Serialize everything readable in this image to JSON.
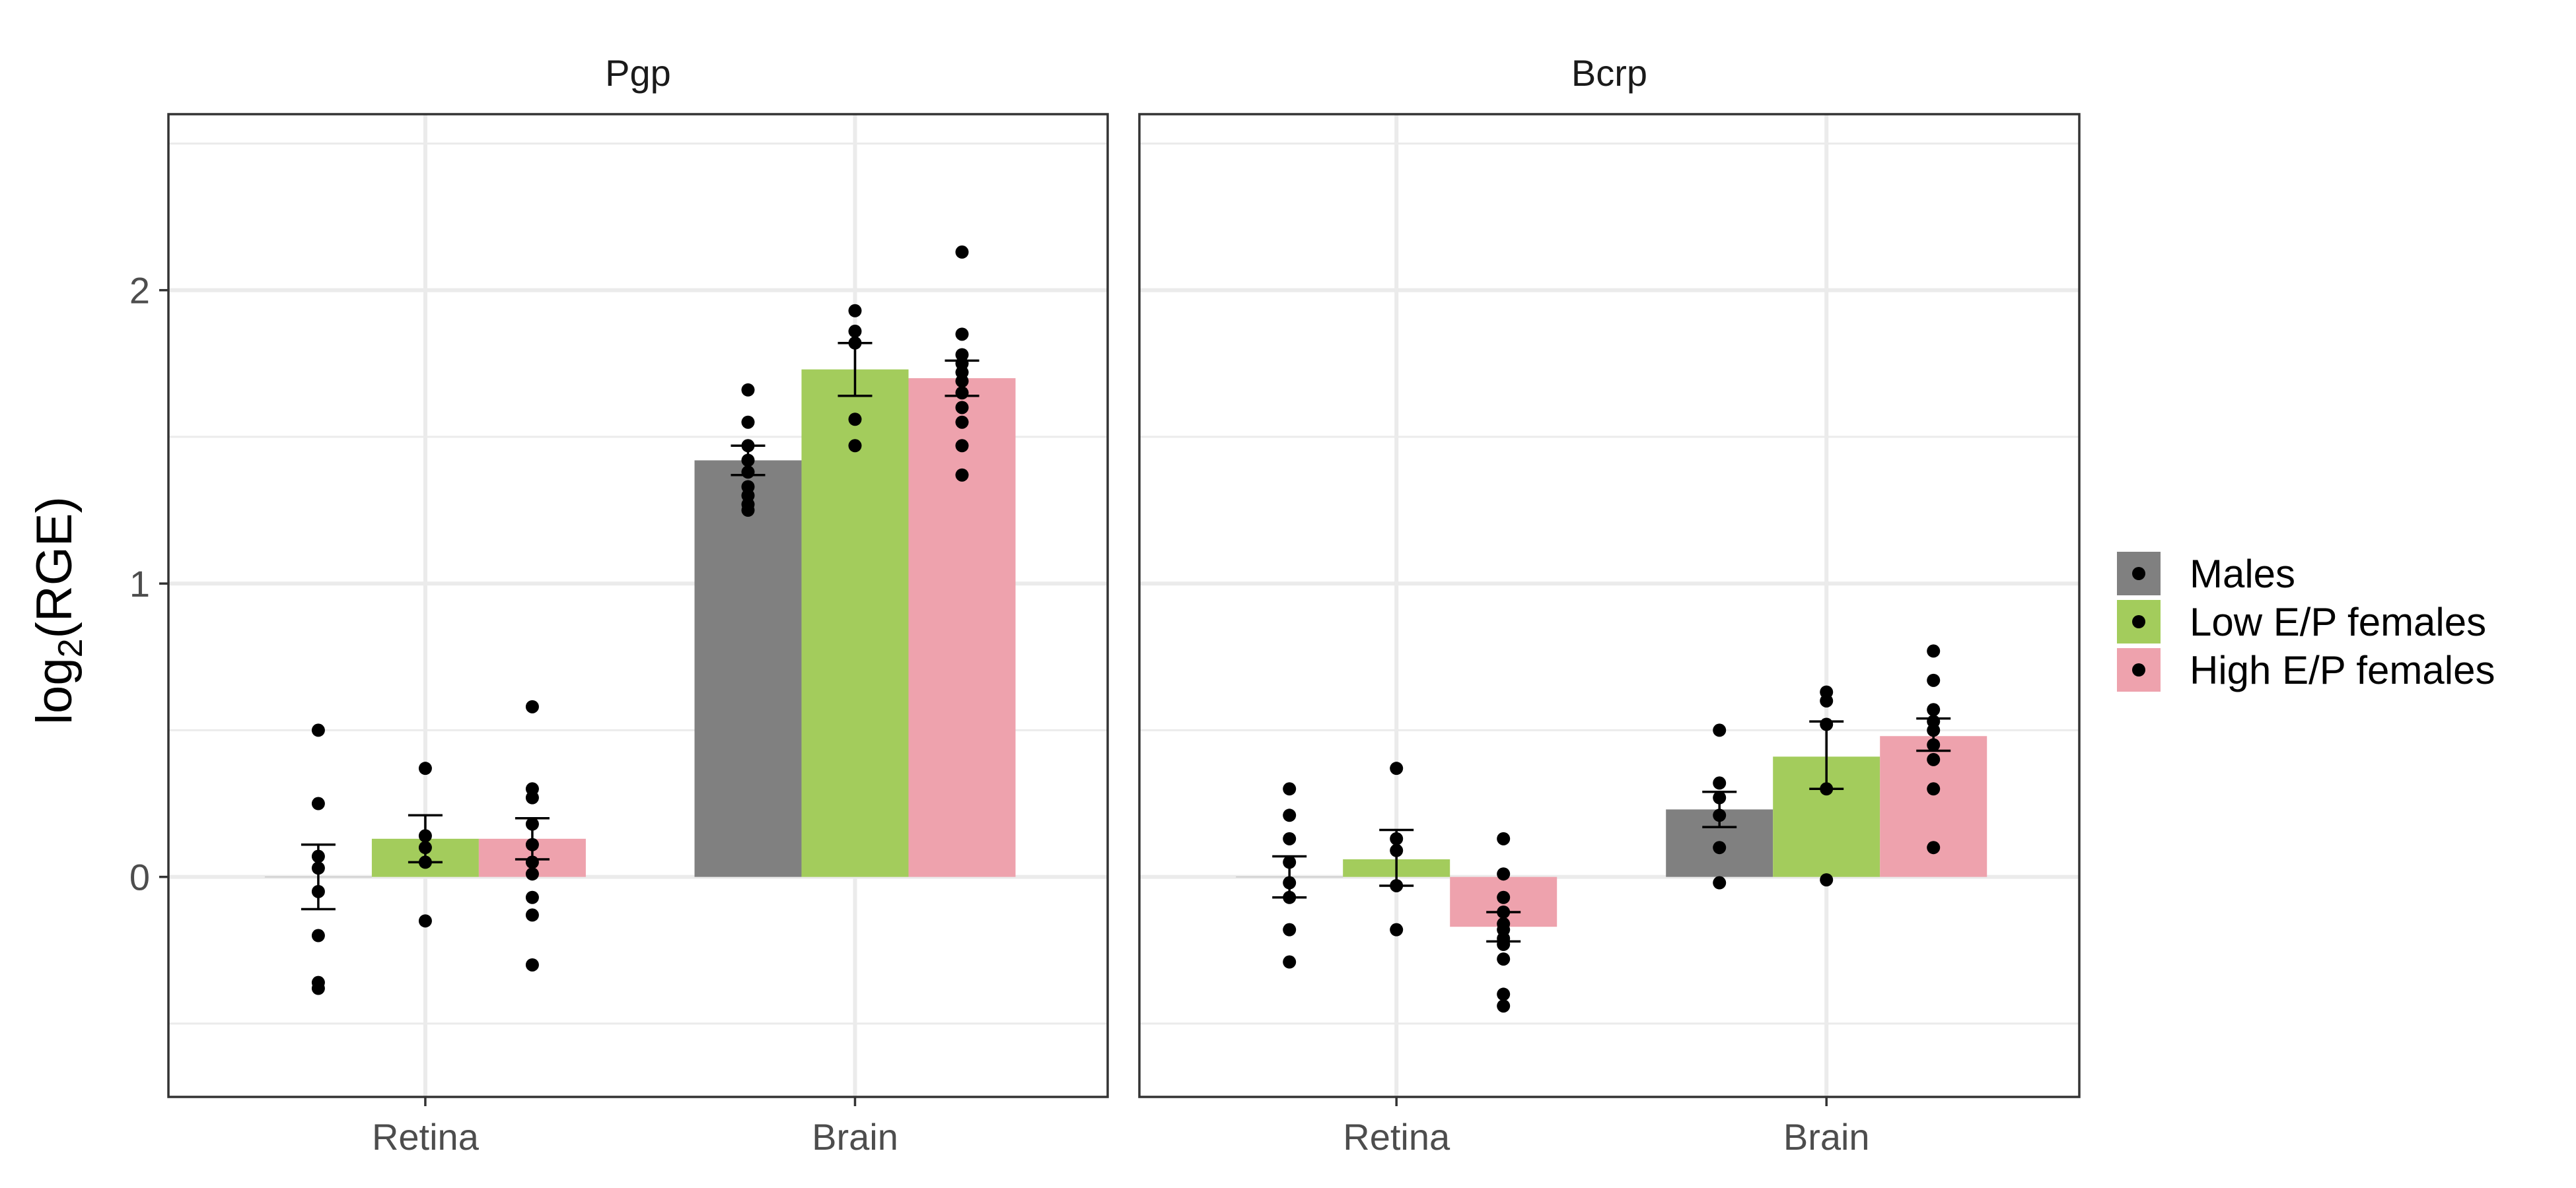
{
  "chart_data": {
    "type": "bar",
    "ylabel": "log2(RGE)",
    "ylabel_base": "log",
    "ylabel_sub": "2",
    "ylabel_arg": "(RGE)",
    "categories": [
      "Retina",
      "Brain"
    ],
    "y_ticks": [
      "0",
      "1",
      "2"
    ],
    "ylim": [
      -0.75,
      2.6
    ],
    "grid": true,
    "legend_position": "right",
    "legend": [
      {
        "name": "Males",
        "color": "#808080"
      },
      {
        "name": "Low E/P females",
        "color": "#a3cc5c"
      },
      {
        "name": "High E/P females",
        "color": "#eea2ad"
      }
    ],
    "panels": [
      {
        "title": "Pgp",
        "series": [
          {
            "name": "Males",
            "values": [
              0.0,
              1.42
            ],
            "error": [
              [
                -0.11,
                0.11
              ],
              [
                1.37,
                1.47
              ]
            ],
            "points": [
              [
                0.5,
                0.25,
                0.07,
                0.03,
                -0.05,
                -0.2,
                -0.36,
                -0.38
              ],
              [
                1.66,
                1.55,
                1.47,
                1.42,
                1.38,
                1.33,
                1.3,
                1.27,
                1.25
              ]
            ]
          },
          {
            "name": "Low E/P females",
            "values": [
              0.13,
              1.73
            ],
            "error": [
              [
                0.05,
                0.21
              ],
              [
                1.64,
                1.82
              ]
            ],
            "points": [
              [
                0.37,
                0.14,
                0.1,
                0.05,
                -0.15
              ],
              [
                1.93,
                1.86,
                1.82,
                1.56,
                1.47
              ]
            ]
          },
          {
            "name": "High E/P females",
            "values": [
              0.13,
              1.7
            ],
            "error": [
              [
                0.06,
                0.2
              ],
              [
                1.64,
                1.76
              ]
            ],
            "points": [
              [
                0.58,
                0.3,
                0.27,
                0.18,
                0.11,
                0.05,
                0.01,
                -0.07,
                -0.13,
                -0.3
              ],
              [
                2.13,
                1.85,
                1.78,
                1.75,
                1.72,
                1.69,
                1.65,
                1.6,
                1.55,
                1.47,
                1.37
              ]
            ]
          }
        ]
      },
      {
        "title": "Bcrp",
        "series": [
          {
            "name": "Males",
            "values": [
              0.0,
              0.23
            ],
            "error": [
              [
                -0.07,
                0.07
              ],
              [
                0.17,
                0.29
              ]
            ],
            "points": [
              [
                0.3,
                0.21,
                0.13,
                0.05,
                -0.02,
                -0.07,
                -0.18,
                -0.29
              ],
              [
                0.5,
                0.32,
                0.27,
                0.21,
                0.1,
                -0.02
              ]
            ]
          },
          {
            "name": "Low E/P females",
            "values": [
              0.06,
              0.41
            ],
            "error": [
              [
                -0.03,
                0.16
              ],
              [
                0.3,
                0.53
              ]
            ],
            "points": [
              [
                0.37,
                0.13,
                0.09,
                -0.03,
                -0.18
              ],
              [
                0.63,
                0.6,
                0.52,
                0.3,
                -0.01
              ]
            ]
          },
          {
            "name": "High E/P females",
            "values": [
              -0.17,
              0.48
            ],
            "error": [
              [
                -0.22,
                -0.12
              ],
              [
                0.43,
                0.54
              ]
            ],
            "points": [
              [
                0.13,
                0.01,
                -0.07,
                -0.12,
                -0.16,
                -0.18,
                -0.21,
                -0.23,
                -0.28,
                -0.4,
                -0.44
              ],
              [
                0.77,
                0.67,
                0.57,
                0.53,
                0.5,
                0.45,
                0.4,
                0.3,
                0.1
              ]
            ]
          }
        ]
      }
    ]
  }
}
